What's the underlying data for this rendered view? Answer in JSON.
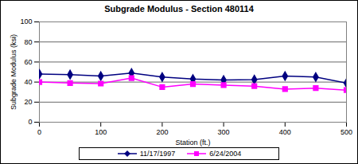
{
  "chart_data": {
    "type": "line",
    "title": "Subgrade Modulus - Section 480114",
    "x_label": "Station (ft.)",
    "y_label": "Subgrade Modulus (ksi)",
    "x": [
      0,
      50,
      100,
      150,
      200,
      250,
      300,
      350,
      400,
      450,
      500
    ],
    "series": [
      {
        "name": "11/17/1997",
        "color": "#000080",
        "marker": "diamond",
        "values": [
          48,
          47.5,
          46,
          49,
          45,
          43,
          42,
          42.5,
          46,
          45,
          39
        ]
      },
      {
        "name": "6/24/2004",
        "color": "#ff00ff",
        "marker": "square",
        "values": [
          40,
          39,
          38.5,
          44,
          35,
          38,
          37,
          36,
          33,
          34,
          32
        ]
      }
    ],
    "xlim": [
      0,
      500
    ],
    "xticks": [
      0,
      100,
      200,
      300,
      400,
      500
    ],
    "ylim": [
      0,
      100
    ],
    "yticks": [
      0,
      20,
      40,
      60,
      80,
      100
    ],
    "grid": true,
    "legend": "bottom"
  }
}
